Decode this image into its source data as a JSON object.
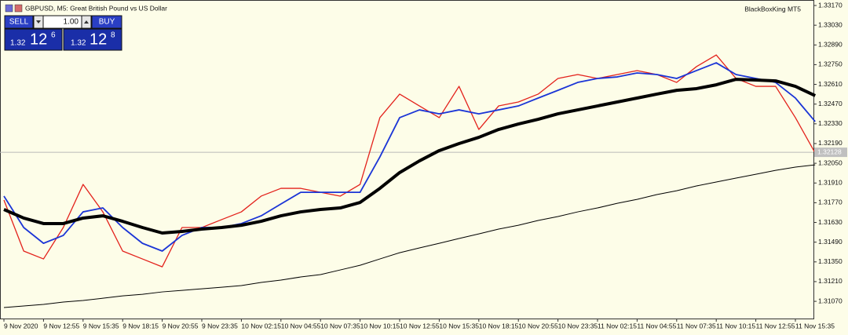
{
  "header": {
    "symbol": "GBPUSD, M5:  Great British Pound vs US Dollar",
    "advisor": "BlackBoxKing MT5"
  },
  "trade_panel": {
    "sell_label": "SELL",
    "buy_label": "BUY",
    "volume": "1.00",
    "sell_big": "1.32",
    "sell_main": "12",
    "sell_small": "6",
    "buy_big": "1.32",
    "buy_main": "12",
    "buy_small": "8"
  },
  "chart_data": {
    "type": "line",
    "categories": [
      "9 Nov 2020",
      null,
      "9 Nov 12:55",
      null,
      "9 Nov 15:35",
      null,
      "9 Nov 18:15",
      null,
      "9 Nov 20:55",
      null,
      "9 Nov 23:35",
      null,
      "10 Nov 02:15",
      null,
      "10 Nov 04:55",
      null,
      "10 Nov 07:35",
      null,
      "10 Nov 10:15",
      null,
      "10 Nov 12:55",
      null,
      "10 Nov 15:35",
      null,
      "10 Nov 18:15",
      null,
      "10 Nov 20:55",
      null,
      "10 Nov 23:35",
      null,
      "11 Nov 02:15",
      null,
      "11 Nov 04:55",
      null,
      "11 Nov 07:35",
      null,
      "11 Nov 10:15",
      null,
      "11 Nov 12:55",
      null,
      "11 Nov 15:35",
      null
    ],
    "series": [
      {
        "color": "#000000",
        "values": [
          1.31026,
          1.31037,
          1.31048,
          1.31065,
          1.31076,
          1.31092,
          1.31109,
          1.3112,
          1.31137,
          1.31148,
          1.31159,
          1.3117,
          1.31182,
          1.31204,
          1.31221,
          1.31243,
          1.3126,
          1.31293,
          1.31326,
          1.31371,
          1.31415,
          1.31449,
          1.31482,
          1.31516,
          1.31549,
          1.31583,
          1.3161,
          1.31644,
          1.31672,
          1.31705,
          1.31733,
          1.31766,
          1.31794,
          1.31828,
          1.31855,
          1.31889,
          1.31917,
          1.31945,
          1.31972,
          1.32,
          1.32023,
          1.32039
        ]
      },
      {
        "color": "#e3211b",
        "values": [
          1.31789,
          1.31427,
          1.31371,
          1.31594,
          1.319,
          1.31705,
          1.31427,
          1.31371,
          1.31315,
          1.31594,
          1.31594,
          1.3165,
          1.31705,
          1.31817,
          1.31872,
          1.31872,
          1.31844,
          1.31817,
          1.319,
          1.32374,
          1.32541,
          1.32457,
          1.32374,
          1.32596,
          1.3229,
          1.32457,
          1.32485,
          1.32541,
          1.32652,
          1.3268,
          1.32652,
          1.3268,
          1.32708,
          1.3268,
          1.32624,
          1.32736,
          1.32819,
          1.32652,
          1.32596,
          1.32596,
          1.32374,
          1.32123
        ]
      },
      {
        "color": "#1b35d6",
        "values": [
          1.31817,
          1.31594,
          1.31482,
          1.31538,
          1.31705,
          1.31733,
          1.31594,
          1.31482,
          1.31427,
          1.31538,
          1.31594,
          1.31594,
          1.31622,
          1.31677,
          1.31761,
          1.31844,
          1.31844,
          1.31844,
          1.31844,
          1.32095,
          1.32374,
          1.32429,
          1.32401,
          1.32429,
          1.32401,
          1.32429,
          1.32457,
          1.32513,
          1.32568,
          1.32624,
          1.32652,
          1.32663,
          1.32691,
          1.3268,
          1.32652,
          1.32708,
          1.32763,
          1.3268,
          1.32652,
          1.32624,
          1.32513,
          1.32346
        ]
      },
      {
        "color": "#000000",
        "values": [
          1.31722,
          1.31661,
          1.31622,
          1.31622,
          1.31661,
          1.31677,
          1.31638,
          1.31594,
          1.31555,
          1.31566,
          1.31583,
          1.31594,
          1.3161,
          1.31638,
          1.31677,
          1.31705,
          1.31722,
          1.31733,
          1.31772,
          1.31872,
          1.31984,
          1.32067,
          1.3214,
          1.3219,
          1.32234,
          1.3229,
          1.32329,
          1.32362,
          1.32401,
          1.32429,
          1.32457,
          1.32485,
          1.32513,
          1.32541,
          1.32568,
          1.3258,
          1.32607,
          1.32646,
          1.32641,
          1.32635,
          1.32596,
          1.3253
        ]
      }
    ],
    "current_price": {
      "value": 1.32128,
      "label": "1.32128"
    },
    "ylim": [
      1.30948,
      1.33209
    ],
    "yticks": [
      {
        "value": 1.3317,
        "label": "1.33170"
      },
      {
        "value": 1.3303,
        "label": "1.33030"
      },
      {
        "value": 1.3289,
        "label": "1.32890"
      },
      {
        "value": 1.3275,
        "label": "1.32750"
      },
      {
        "value": 1.3261,
        "label": "1.32610"
      },
      {
        "value": 1.3247,
        "label": "1.32470"
      },
      {
        "value": 1.3233,
        "label": "1.32330"
      },
      {
        "value": 1.3219,
        "label": "1.32190"
      },
      {
        "value": 1.3205,
        "label": "1.32050"
      },
      {
        "value": 1.3191,
        "label": "1.31910"
      },
      {
        "value": 1.3177,
        "label": "1.31770"
      },
      {
        "value": 1.3163,
        "label": "1.31630"
      },
      {
        "value": 1.3149,
        "label": "1.31490"
      },
      {
        "value": 1.3135,
        "label": "1.31350"
      },
      {
        "value": 1.3121,
        "label": "1.31210"
      },
      {
        "value": 1.3107,
        "label": "1.31070"
      }
    ],
    "grid": false
  }
}
